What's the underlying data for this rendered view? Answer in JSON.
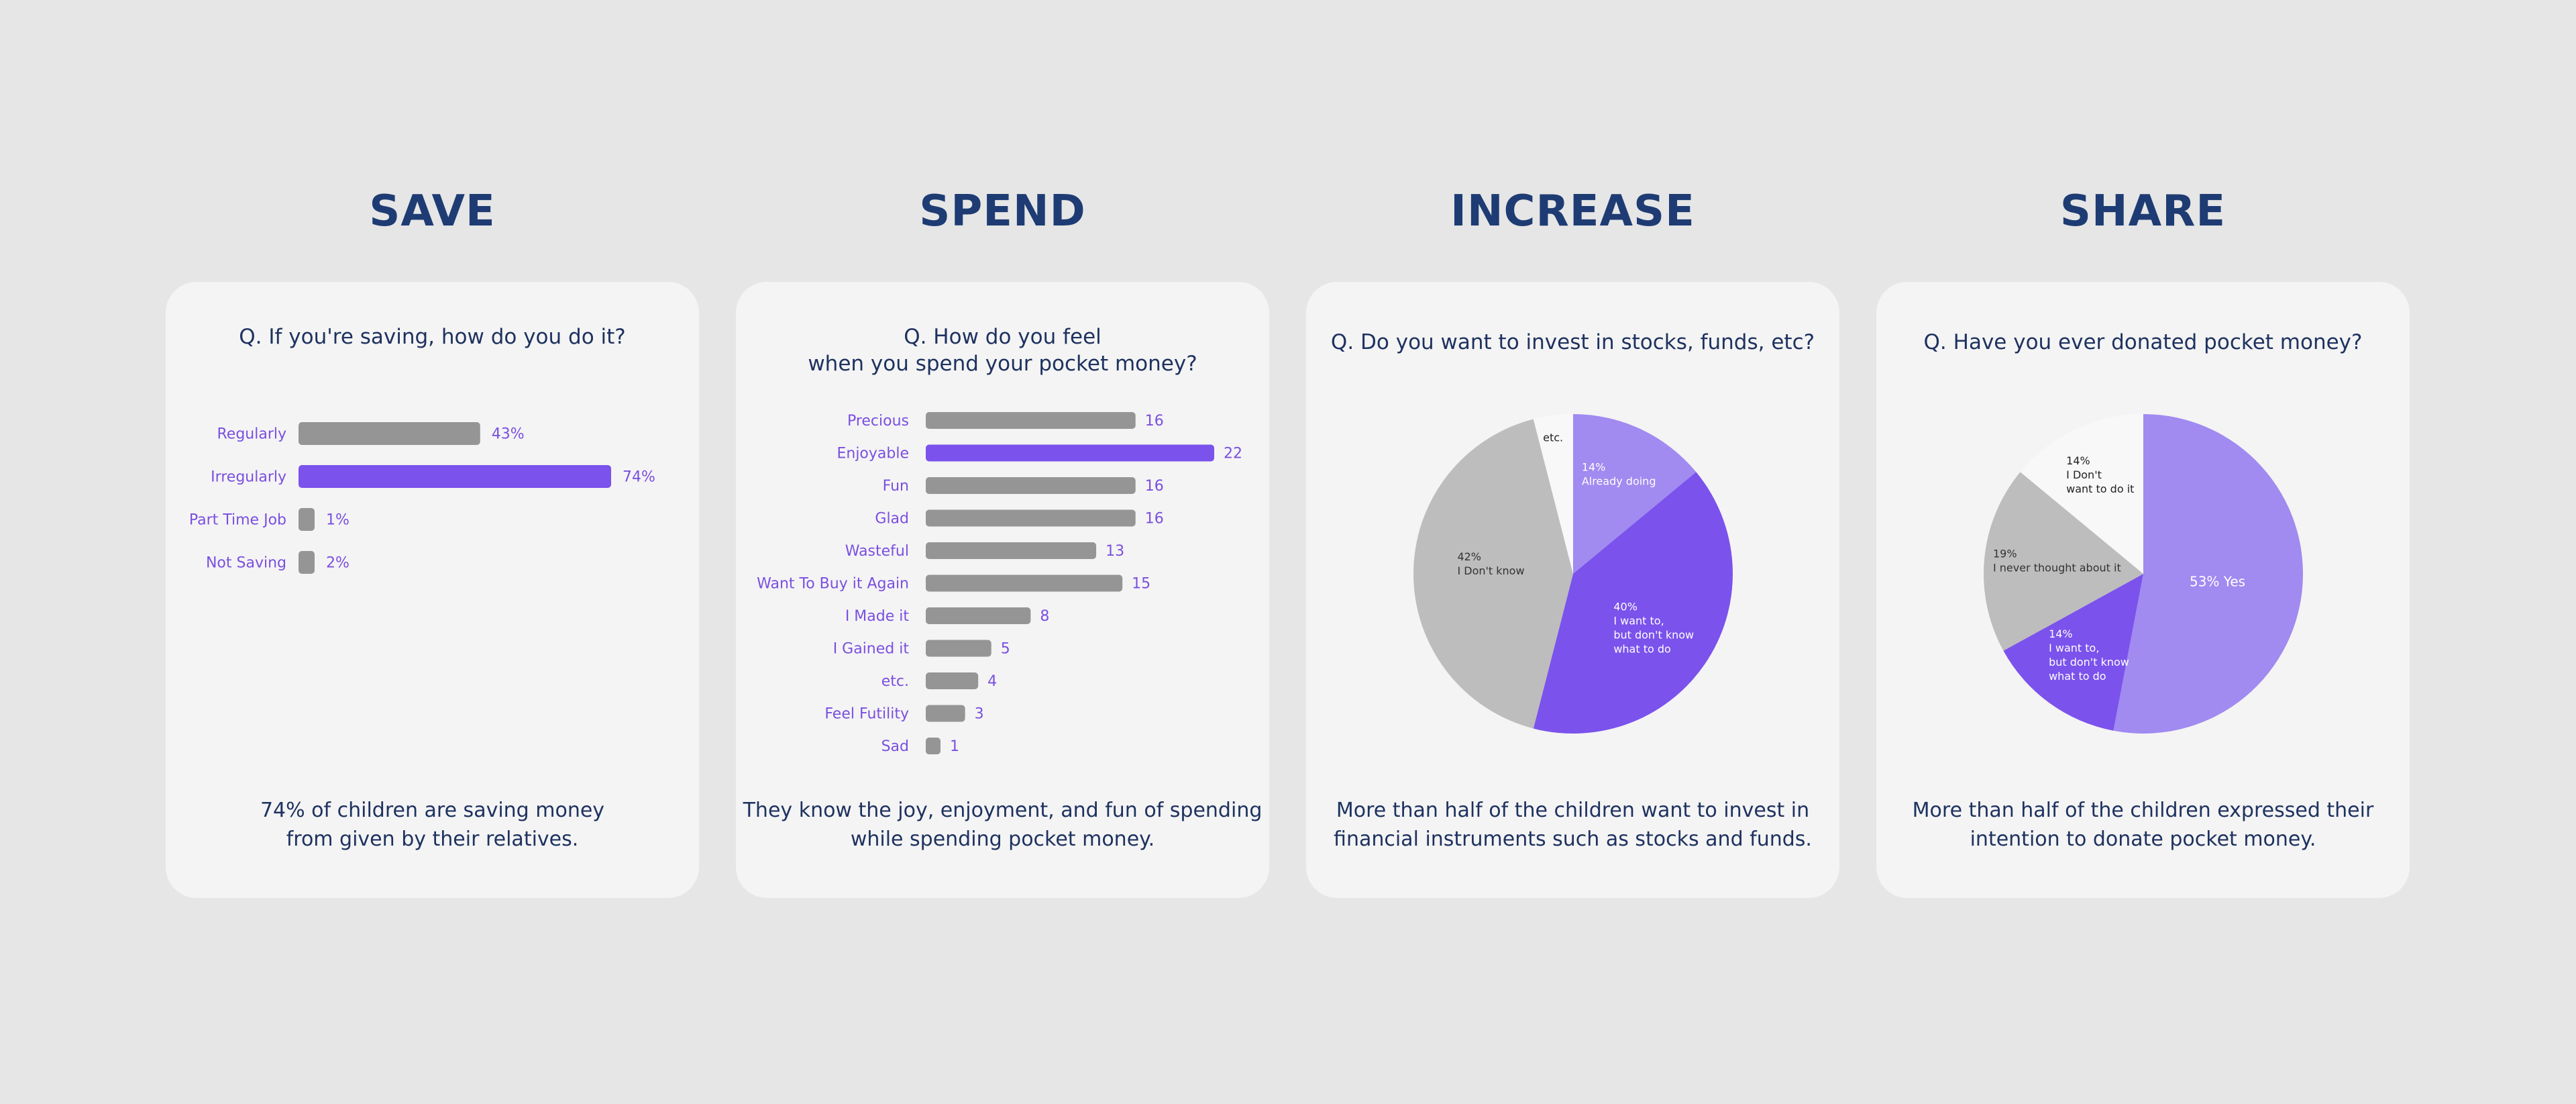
{
  "colors": {
    "background": "#e6e6e6",
    "card": "#f4f4f4",
    "heading": "#1e3c73",
    "text": "#1e3260",
    "accent_purple": "#7b52ec",
    "light_purple": "#a18af0",
    "bar_gray": "#959595",
    "pie_gray": "#bdbdbd",
    "pie_white": "#f8f8f8",
    "label_purple": "#7a4fe0"
  },
  "sections": [
    {
      "title": "SAVE",
      "question": "Q. If you're saving, how do you do it?",
      "summary": "74% of children are saving money\nfrom given by their relatives."
    },
    {
      "title": "SPEND",
      "question": "Q. How do you feel\nwhen you spend your pocket money?",
      "summary": "They know the joy, enjoyment, and fun of spending\nwhile spending pocket money."
    },
    {
      "title": "INCREASE",
      "question": "Q. Do you want to invest in stocks, funds, etc?",
      "summary": "More than half of the children want to invest in\nfinancial instruments such as stocks and funds."
    },
    {
      "title": "SHARE",
      "question": "Q. Have you ever donated pocket money?",
      "summary": "More than half of the children expressed their\nintention to donate pocket money."
    }
  ],
  "chart_data": [
    {
      "type": "bar",
      "orientation": "horizontal",
      "categories": [
        "Regularly",
        "Irregularly",
        "Part Time Job",
        "Not Saving"
      ],
      "values": [
        43,
        74,
        1,
        2
      ],
      "value_labels": [
        "43%",
        "74%",
        "1%",
        "2%"
      ],
      "highlight": "Irregularly",
      "grid": false
    },
    {
      "type": "bar",
      "orientation": "horizontal",
      "categories": [
        "Precious",
        "Enjoyable",
        "Fun",
        "Glad",
        "Wasteful",
        "Want To Buy it Again",
        "I Made it",
        "I Gained it",
        "etc.",
        "Feel Futility",
        "Sad"
      ],
      "values": [
        16,
        22,
        16,
        16,
        13,
        15,
        8,
        5,
        4,
        3,
        1
      ],
      "value_labels": [
        "16",
        "22",
        "16",
        "16",
        "13",
        "15",
        "8",
        "5",
        "4",
        "3",
        "1"
      ],
      "highlight": "Enjoyable",
      "grid": false
    },
    {
      "type": "pie",
      "slices": [
        {
          "value": 14,
          "pct": "14%",
          "label": "Already doing",
          "color": "#a18af0",
          "text_color": "#ffffff"
        },
        {
          "value": 40,
          "pct": "40%",
          "label": "I want to,\nbut don't know\nwhat to do",
          "color": "#7b52ec",
          "text_color": "#ffffff"
        },
        {
          "value": 42,
          "pct": "42%",
          "label": "I Don't know",
          "color": "#bdbdbd",
          "text_color": "#333333"
        },
        {
          "value": 4,
          "pct": "",
          "label": "etc.",
          "color": "#f8f8f8",
          "text_color": "#222222"
        }
      ]
    },
    {
      "type": "pie",
      "slices": [
        {
          "value": 53,
          "pct": "53%",
          "label": "Yes",
          "color": "#a18af0",
          "text_color": "#ffffff"
        },
        {
          "value": 14,
          "pct": "14%",
          "label": "I want to,\nbut don't know\nwhat to do",
          "color": "#7b52ec",
          "text_color": "#ffffff"
        },
        {
          "value": 19,
          "pct": "19%",
          "label": "I never thought about it",
          "color": "#bdbdbd",
          "text_color": "#333333"
        },
        {
          "value": 14,
          "pct": "14%",
          "label": "I Don't\nwant to do it",
          "color": "#f8f8f8",
          "text_color": "#222222"
        }
      ]
    }
  ]
}
